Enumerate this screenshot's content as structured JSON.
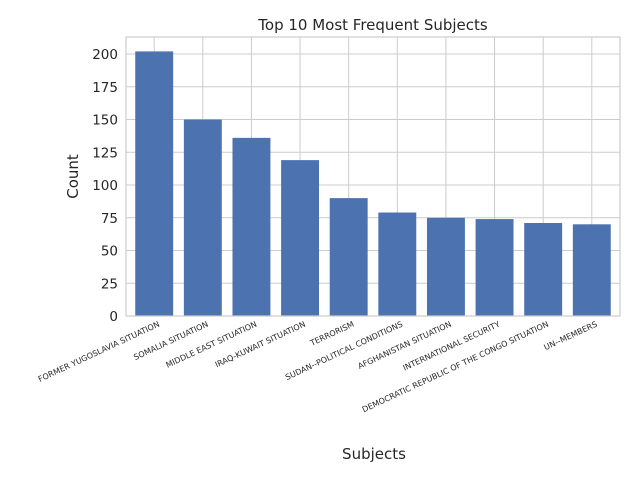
{
  "chart_data": {
    "type": "bar",
    "title": "Top 10 Most Frequent Subjects",
    "xlabel": "Subjects",
    "ylabel": "Count",
    "ylim": [
      0,
      213
    ],
    "yticks": [
      0,
      25,
      50,
      75,
      100,
      125,
      150,
      175,
      200
    ],
    "grid": true,
    "bar_color": "#4c72b0",
    "categories": [
      "FORMER YUGOSLAVIA SITUATION",
      "SOMALIA SITUATION",
      "MIDDLE EAST SITUATION",
      "IRAQ-KUWAIT SITUATION",
      "TERRORISM",
      "SUDAN--POLITICAL CONDITIONS",
      "AFGHANISTAN SITUATION",
      "INTERNATIONAL SECURITY",
      "DEMOCRATIC REPUBLIC OF THE CONGO SITUATION",
      "UN--MEMBERS"
    ],
    "values": [
      202,
      150,
      136,
      119,
      90,
      79,
      75,
      74,
      71,
      70
    ]
  }
}
